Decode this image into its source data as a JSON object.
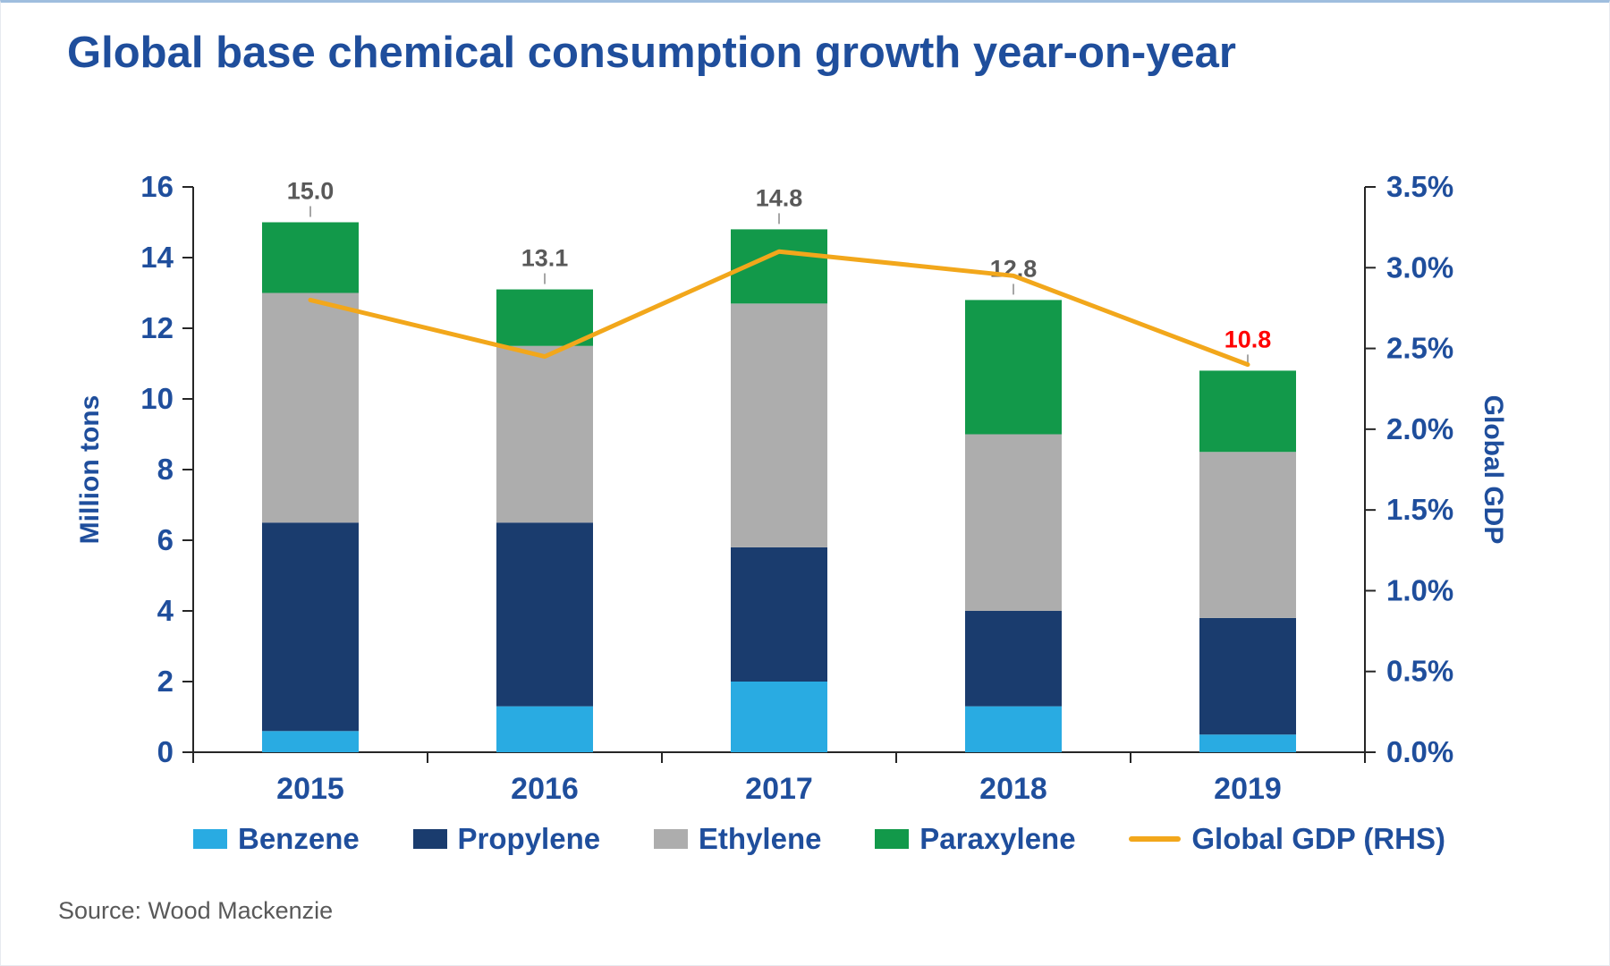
{
  "title_color": "#1F4E9C",
  "source": "Source: Wood Mackenzie",
  "chart_data": {
    "type": "bar",
    "stacked": true,
    "grid": false,
    "legend_position": "bottom",
    "title": "Global base chemical consumption growth year-on-year",
    "categories": [
      "2015",
      "2016",
      "2017",
      "2018",
      "2019"
    ],
    "series": [
      {
        "name": "Benzene",
        "color": "#29ABE2",
        "values": [
          0.6,
          1.3,
          2.0,
          1.3,
          0.5
        ]
      },
      {
        "name": "Propylene",
        "color": "#1A3C6E",
        "values": [
          5.9,
          5.2,
          3.8,
          2.7,
          3.3
        ]
      },
      {
        "name": "Ethylene",
        "color": "#ADADAD",
        "values": [
          6.5,
          5.0,
          6.9,
          5.0,
          4.7
        ]
      },
      {
        "name": "Paraxylene",
        "color": "#12994A",
        "values": [
          2.0,
          1.6,
          2.1,
          3.8,
          2.3
        ]
      }
    ],
    "totals": [
      {
        "label": "15.0",
        "color": "#595959"
      },
      {
        "label": "13.1",
        "color": "#595959"
      },
      {
        "label": "14.8",
        "color": "#595959"
      },
      {
        "label": "12.8",
        "color": "#595959"
      },
      {
        "label": "10.8",
        "color": "#FF0000"
      }
    ],
    "line_series": {
      "name": "Global GDP (RHS)",
      "color": "#F2A71B",
      "values": [
        2.8,
        2.45,
        3.1,
        2.95,
        2.4
      ]
    },
    "left_axis": {
      "title": "Million tons",
      "min": 0,
      "max": 16,
      "step": 2,
      "ticks": [
        "0",
        "2",
        "4",
        "6",
        "8",
        "10",
        "12",
        "14",
        "16"
      ]
    },
    "right_axis": {
      "title": "Global GDP",
      "min": 0,
      "max": 3.5,
      "step": 0.5,
      "ticks": [
        "0.0%",
        "0.5%",
        "1.0%",
        "1.5%",
        "2.0%",
        "2.5%",
        "3.0%",
        "3.5%"
      ]
    }
  }
}
